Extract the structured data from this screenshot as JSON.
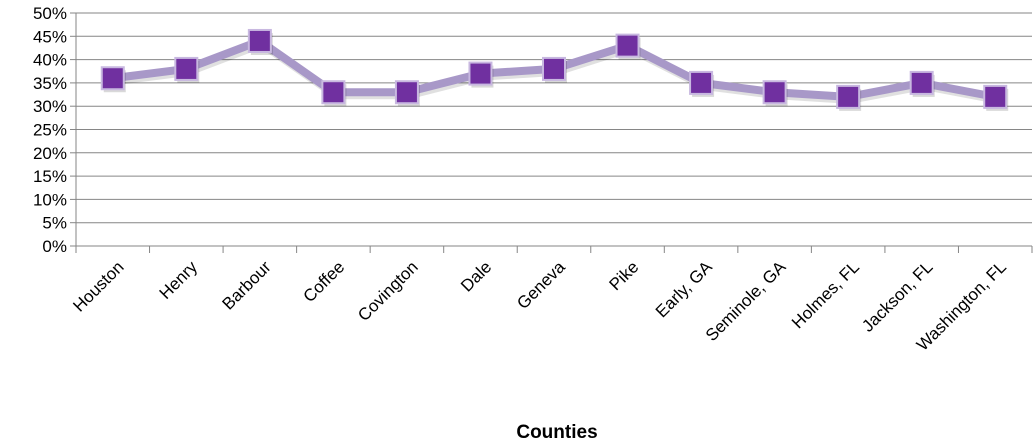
{
  "chart_data": {
    "type": "line",
    "title": "",
    "xlabel": "Counties",
    "ylabel": "",
    "categories": [
      "Houston",
      "Henry",
      "Barbour",
      "Coffee",
      "Covington",
      "Dale",
      "Geneva",
      "Pike",
      "Early, GA",
      "Seminole, GA",
      "Holmes, FL",
      "Jackson, FL",
      "Washington, FL"
    ],
    "series": [
      {
        "values": [
          0.36,
          0.38,
          0.44,
          0.33,
          0.33,
          0.37,
          0.38,
          0.43,
          0.35,
          0.33,
          0.32,
          0.35,
          0.32
        ]
      }
    ],
    "ylim": [
      0,
      0.5
    ],
    "yticks": [
      0,
      0.05,
      0.1,
      0.15,
      0.2,
      0.25,
      0.3,
      0.35,
      0.4,
      0.45,
      0.5
    ],
    "ytick_labels": [
      "0%",
      "5%",
      "10%",
      "15%",
      "20%",
      "25%",
      "30%",
      "35%",
      "40%",
      "45%",
      "50%"
    ],
    "grid": true,
    "legend": "none",
    "colors": {
      "line": "#a898c8",
      "marker": "#7030a0",
      "marker_edge": "#c8b8e0",
      "grid": "#868686"
    }
  }
}
